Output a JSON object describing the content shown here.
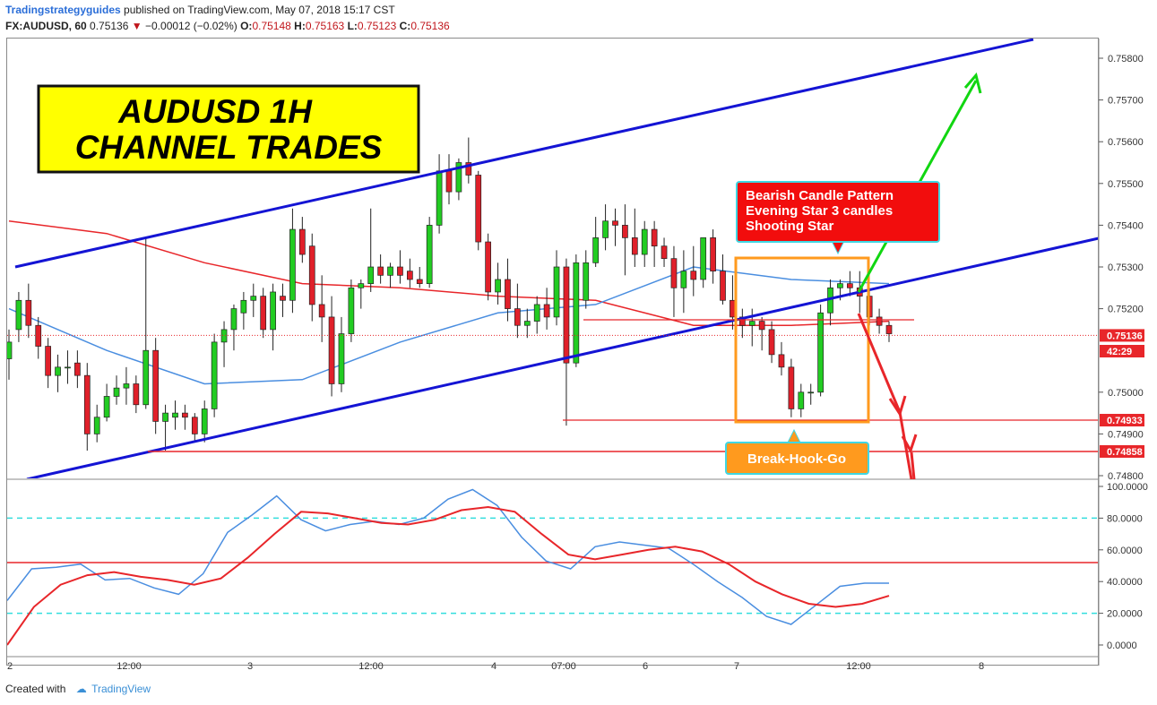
{
  "header": {
    "author": "Tradingstrategyguides",
    "published_text": " published on TradingView.com, May 07, 2018 15:17 CST",
    "symbol": "FX:AUDUSD, 60",
    "last": "0.75136",
    "change": "−0.00012 (−0.02%)",
    "o_label": "O:",
    "o_val": "0.75148",
    "h_label": "H:",
    "h_val": "0.75163",
    "l_label": "L:",
    "l_val": "0.75123",
    "c_label": "C:",
    "c_val": "0.75136"
  },
  "title_box": {
    "line1": "AUDUSD 1H",
    "line2": "CHANNEL TRADES"
  },
  "annotations": {
    "bearish": [
      "Bearish Candle Pattern",
      "Evening Star 3 candles",
      "Shooting Star"
    ],
    "bhg": "Break-Hook-Go"
  },
  "price_axis": {
    "ticks": [
      "0.75800",
      "0.75700",
      "0.75600",
      "0.75500",
      "0.75400",
      "0.75300",
      "0.75200",
      "0.75000",
      "0.74900",
      "0.74800"
    ],
    "partial_label": "0."
  },
  "price_tags": [
    {
      "text": "0.75136",
      "color": "#e8262a"
    },
    {
      "text": "42:29",
      "color": "#e8262a"
    },
    {
      "text": "0.74933",
      "color": "#e8262a"
    },
    {
      "text": "0.74858",
      "color": "#e8262a"
    }
  ],
  "osc_axis": {
    "ticks": [
      "100.0000",
      "80.0000",
      "60.0000",
      "40.0000",
      "20.0000",
      "0.0000"
    ]
  },
  "time_axis": {
    "ticks": [
      "2",
      "12:00",
      "3",
      "12:00",
      "4",
      "07:00",
      "6",
      "7",
      "12:00",
      "8"
    ]
  },
  "footer": {
    "created": "Created with",
    "brand": "TradingView"
  },
  "colors": {
    "channel": "#1414d4",
    "bull": "#22cc22",
    "bear": "#e0202a",
    "ma_red": "#e8262a",
    "ma_blue": "#4a8ee0",
    "box_orange": "#ff9a1e",
    "title_bg": "#ffff00",
    "label_red_bg": "#f20d0d",
    "label_orange_bg": "#ff9a1e",
    "arrow_green": "#11d611",
    "arrow_red": "#e8262a",
    "level_cyan": "#33dddd"
  },
  "chart_data": [
    {
      "type": "candlestick",
      "symbol": "FX:AUDUSD",
      "interval": "60",
      "ylim": [
        0.7479,
        0.7584
      ],
      "x_ticks": [
        "2",
        "12:00",
        "3",
        "12:00",
        "4",
        "07:00",
        "6",
        "7",
        "12:00",
        "8"
      ],
      "levels": [
        0.74933,
        0.74858
      ],
      "last_price": 0.75136,
      "candles": [
        [
          0.7508,
          0.7515,
          0.7503,
          0.7512
        ],
        [
          0.7515,
          0.7524,
          0.7512,
          0.7522
        ],
        [
          0.7522,
          0.7526,
          0.7513,
          0.7516
        ],
        [
          0.7516,
          0.7518,
          0.7508,
          0.7511
        ],
        [
          0.7511,
          0.7513,
          0.7501,
          0.7504
        ],
        [
          0.7504,
          0.7509,
          0.75,
          0.7506
        ],
        [
          0.7506,
          0.751,
          0.7502,
          0.7506
        ],
        [
          0.7507,
          0.751,
          0.7501,
          0.7504
        ],
        [
          0.7504,
          0.7507,
          0.7486,
          0.749
        ],
        [
          0.749,
          0.7497,
          0.7488,
          0.7494
        ],
        [
          0.7494,
          0.7502,
          0.7493,
          0.7499
        ],
        [
          0.7499,
          0.7504,
          0.7497,
          0.7501
        ],
        [
          0.7501,
          0.7506,
          0.7497,
          0.7502
        ],
        [
          0.7502,
          0.7504,
          0.7495,
          0.7497
        ],
        [
          0.7497,
          0.7537,
          0.7496,
          0.751
        ],
        [
          0.751,
          0.7513,
          0.749,
          0.7493
        ],
        [
          0.7493,
          0.7497,
          0.7486,
          0.7495
        ],
        [
          0.7494,
          0.7498,
          0.7491,
          0.7495
        ],
        [
          0.7495,
          0.7497,
          0.7491,
          0.7494
        ],
        [
          0.7494,
          0.7495,
          0.7488,
          0.749
        ],
        [
          0.749,
          0.7498,
          0.7488,
          0.7496
        ],
        [
          0.7496,
          0.7514,
          0.7494,
          0.7512
        ],
        [
          0.7512,
          0.7517,
          0.7506,
          0.7515
        ],
        [
          0.7515,
          0.7521,
          0.751,
          0.752
        ],
        [
          0.7519,
          0.7524,
          0.7515,
          0.7522
        ],
        [
          0.7522,
          0.7526,
          0.7518,
          0.7523
        ],
        [
          0.7523,
          0.7525,
          0.7513,
          0.7515
        ],
        [
          0.7515,
          0.7526,
          0.751,
          0.7524
        ],
        [
          0.7523,
          0.7526,
          0.7518,
          0.7522
        ],
        [
          0.7522,
          0.7544,
          0.7519,
          0.7539
        ],
        [
          0.7539,
          0.7542,
          0.7531,
          0.7533
        ],
        [
          0.7535,
          0.7538,
          0.7517,
          0.7521
        ],
        [
          0.7521,
          0.7528,
          0.7512,
          0.7518
        ],
        [
          0.7518,
          0.7523,
          0.7499,
          0.7502
        ],
        [
          0.7502,
          0.7518,
          0.75,
          0.7514
        ],
        [
          0.7514,
          0.7527,
          0.7512,
          0.7525
        ],
        [
          0.7525,
          0.7527,
          0.752,
          0.7526
        ],
        [
          0.7526,
          0.7544,
          0.7524,
          0.753
        ],
        [
          0.753,
          0.7533,
          0.7526,
          0.7528
        ],
        [
          0.7528,
          0.7531,
          0.7525,
          0.753
        ],
        [
          0.753,
          0.7534,
          0.7526,
          0.7528
        ],
        [
          0.7529,
          0.7532,
          0.7525,
          0.7527
        ],
        [
          0.7527,
          0.753,
          0.7525,
          0.7526
        ],
        [
          0.7526,
          0.7542,
          0.7525,
          0.754
        ],
        [
          0.754,
          0.7557,
          0.7538,
          0.7553
        ],
        [
          0.7553,
          0.7557,
          0.7545,
          0.7548
        ],
        [
          0.7548,
          0.7556,
          0.7546,
          0.7555
        ],
        [
          0.7555,
          0.7561,
          0.755,
          0.7552
        ],
        [
          0.7552,
          0.7553,
          0.7534,
          0.7536
        ],
        [
          0.7536,
          0.7538,
          0.7522,
          0.7524
        ],
        [
          0.7524,
          0.7531,
          0.7521,
          0.7527
        ],
        [
          0.7527,
          0.7532,
          0.7517,
          0.752
        ],
        [
          0.752,
          0.7526,
          0.7513,
          0.7516
        ],
        [
          0.7516,
          0.752,
          0.7513,
          0.7517
        ],
        [
          0.7517,
          0.7523,
          0.7514,
          0.7521
        ],
        [
          0.7521,
          0.7525,
          0.7515,
          0.7518
        ],
        [
          0.7518,
          0.7534,
          0.7516,
          0.753
        ],
        [
          0.753,
          0.7532,
          0.7492,
          0.7507
        ],
        [
          0.7507,
          0.7533,
          0.7506,
          0.7531
        ],
        [
          0.7522,
          0.7534,
          0.752,
          0.7531
        ],
        [
          0.7531,
          0.7542,
          0.753,
          0.7537
        ],
        [
          0.7537,
          0.7545,
          0.7534,
          0.7541
        ],
        [
          0.7541,
          0.7544,
          0.7535,
          0.754
        ],
        [
          0.754,
          0.7545,
          0.7528,
          0.7537
        ],
        [
          0.7537,
          0.7544,
          0.753,
          0.7533
        ],
        [
          0.7533,
          0.7541,
          0.753,
          0.7539
        ],
        [
          0.7539,
          0.7541,
          0.753,
          0.7535
        ],
        [
          0.7535,
          0.7537,
          0.753,
          0.7532
        ],
        [
          0.7532,
          0.7535,
          0.7518,
          0.7525
        ],
        [
          0.7525,
          0.7534,
          0.7519,
          0.7529
        ],
        [
          0.7529,
          0.7535,
          0.7523,
          0.7527
        ],
        [
          0.7527,
          0.7537,
          0.7525,
          0.7537
        ],
        [
          0.7537,
          0.7539,
          0.7526,
          0.7529
        ],
        [
          0.7529,
          0.7533,
          0.7521,
          0.7522
        ],
        [
          0.7522,
          0.7528,
          0.7515,
          0.7518
        ],
        [
          0.7518,
          0.752,
          0.7513,
          0.7516
        ],
        [
          0.7516,
          0.752,
          0.7511,
          0.7517
        ],
        [
          0.7517,
          0.7518,
          0.751,
          0.7515
        ],
        [
          0.7515,
          0.7517,
          0.7507,
          0.7509
        ],
        [
          0.7509,
          0.7512,
          0.7504,
          0.7506
        ],
        [
          0.7506,
          0.7508,
          0.7494,
          0.7496
        ],
        [
          0.7496,
          0.7502,
          0.7494,
          0.75
        ],
        [
          0.75,
          0.7502,
          0.7497,
          0.75
        ],
        [
          0.75,
          0.7521,
          0.7499,
          0.7519
        ],
        [
          0.7519,
          0.7527,
          0.7516,
          0.7525
        ],
        [
          0.7525,
          0.7527,
          0.7522,
          0.7526
        ],
        [
          0.7526,
          0.7529,
          0.7523,
          0.7525
        ],
        [
          0.7525,
          0.7529,
          0.7519,
          0.7523
        ],
        [
          0.7523,
          0.7525,
          0.7516,
          0.7518
        ],
        [
          0.7518,
          0.752,
          0.7514,
          0.7516
        ],
        [
          0.7516,
          0.7517,
          0.7512,
          0.7514
        ]
      ],
      "indicators": [
        {
          "name": "",
          "color": "#e8262a",
          "values": [
            0.7541,
            0.7538,
            0.7531,
            0.7526,
            0.7525,
            0.7523,
            0.7522,
            0.7516,
            0.7516,
            0.7517
          ]
        },
        {
          "name": "",
          "color": "#4a8ee0",
          "values": [
            0.752,
            0.751,
            0.7502,
            0.7503,
            0.7512,
            0.7519,
            0.7521,
            0.753,
            0.7527,
            0.7526
          ]
        }
      ]
    },
    {
      "type": "line",
      "ylim": [
        0,
        100
      ],
      "levels": [
        80,
        52,
        20
      ],
      "series": [
        {
          "name": "",
          "color": "#4a8ee0",
          "values": [
            28,
            48,
            49,
            51,
            41,
            42,
            36,
            32,
            45,
            71,
            82,
            94,
            79,
            72,
            76,
            78,
            76,
            80,
            92,
            98,
            88,
            68,
            53,
            48,
            62,
            65,
            63,
            61,
            51,
            40,
            30,
            18,
            13,
            25,
            37,
            39,
            39
          ]
        },
        {
          "name": "",
          "color": "#e8262a",
          "values": [
            0,
            24,
            38,
            44,
            46,
            43,
            41,
            38,
            42,
            55,
            70,
            84,
            83,
            80,
            77,
            76,
            79,
            85,
            87,
            84,
            70,
            57,
            54,
            57,
            60,
            62,
            59,
            51,
            40,
            32,
            26,
            24,
            26,
            31
          ]
        }
      ]
    }
  ]
}
